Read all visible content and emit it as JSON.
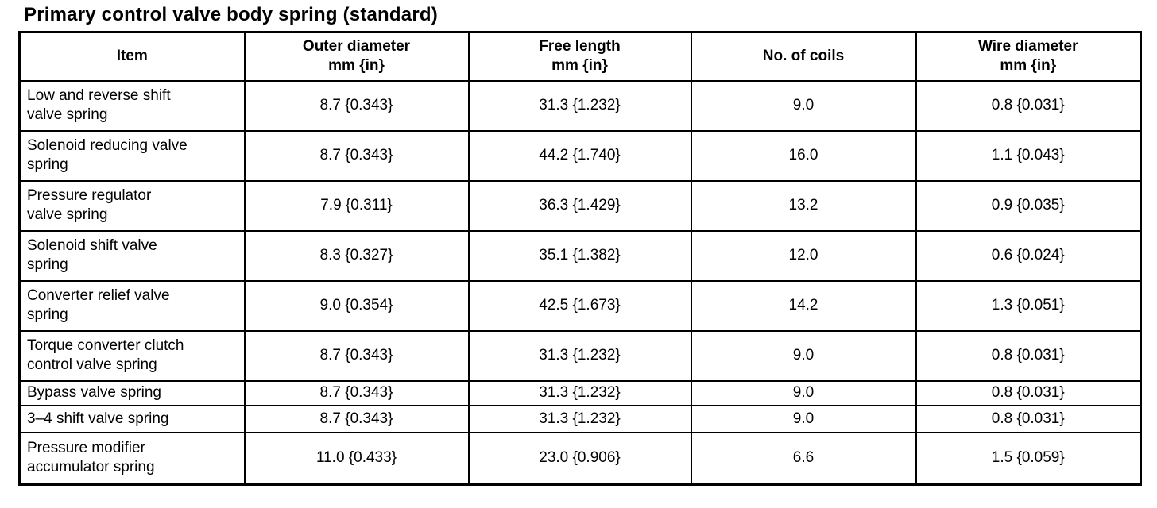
{
  "title": "Primary control valve body spring (standard)",
  "table": {
    "columns": [
      {
        "label": "Item",
        "unit": ""
      },
      {
        "label": "Outer diameter",
        "unit": "mm {in}"
      },
      {
        "label": "Free length",
        "unit": "mm {in}"
      },
      {
        "label": "No. of coils",
        "unit": ""
      },
      {
        "label": "Wire diameter",
        "unit": "mm {in}"
      }
    ],
    "rows": [
      [
        "Low and reverse shift valve spring",
        "8.7 {0.343}",
        "31.3 {1.232}",
        "9.0",
        "0.8 {0.031}"
      ],
      [
        "Solenoid reducing valve spring",
        "8.7 {0.343}",
        "44.2 {1.740}",
        "16.0",
        "1.1 {0.043}"
      ],
      [
        "Pressure regulator valve spring",
        "7.9 {0.311}",
        "36.3 {1.429}",
        "13.2",
        "0.9 {0.035}"
      ],
      [
        "Solenoid shift valve spring",
        "8.3 {0.327}",
        "35.1 {1.382}",
        "12.0",
        "0.6 {0.024}"
      ],
      [
        "Converter relief valve spring",
        "9.0 {0.354}",
        "42.5 {1.673}",
        "14.2",
        "1.3 {0.051}"
      ],
      [
        "Torque converter clutch control valve spring",
        "8.7 {0.343}",
        "31.3 {1.232}",
        "9.0",
        "0.8 {0.031}"
      ],
      [
        "Bypass valve spring",
        "8.7 {0.343}",
        "31.3 {1.232}",
        "9.0",
        "0.8 {0.031}"
      ],
      [
        "3–4 shift valve spring",
        "8.7 {0.343}",
        "31.3 {1.232}",
        "9.0",
        "0.8 {0.031}"
      ],
      [
        "Pressure modifier accumulator spring",
        "11.0 {0.433}",
        "23.0 {0.906}",
        "6.6",
        "1.5 {0.059}"
      ]
    ]
  },
  "colors": {
    "text": "#000000",
    "border": "#000000",
    "background": "#ffffff"
  }
}
